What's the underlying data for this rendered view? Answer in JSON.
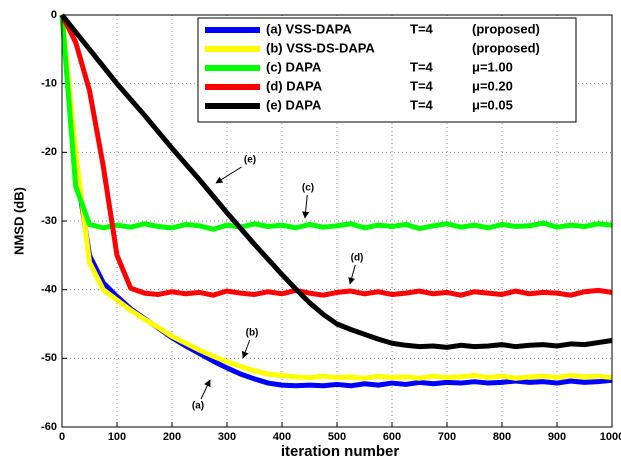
{
  "chart_data": {
    "type": "line",
    "xlabel": "iteration number",
    "ylabel": "NMSD (dB)",
    "xlim": [
      0,
      1000
    ],
    "ylim": [
      -60,
      0
    ],
    "xticks": [
      0,
      100,
      200,
      300,
      400,
      500,
      600,
      700,
      800,
      900,
      1000
    ],
    "yticks": [
      -60,
      -50,
      -40,
      -30,
      -20,
      -10,
      0
    ],
    "grid": true,
    "legend": "top-right",
    "x": [
      0,
      25,
      50,
      75,
      100,
      125,
      150,
      175,
      200,
      225,
      250,
      275,
      300,
      325,
      350,
      375,
      400,
      425,
      450,
      475,
      500,
      525,
      550,
      575,
      600,
      625,
      650,
      675,
      700,
      725,
      750,
      775,
      800,
      825,
      850,
      875,
      900,
      925,
      950,
      975,
      1000
    ],
    "series": [
      {
        "name": "(a) VSS-DAPA",
        "param": "T=4",
        "note": "(proposed)",
        "color": "#0000ff",
        "values": [
          0,
          -22,
          -35,
          -39,
          -41,
          -42.8,
          -44.2,
          -45.6,
          -47,
          -48.2,
          -49.3,
          -50.4,
          -51.4,
          -52.3,
          -53,
          -53.6,
          -53.9,
          -54,
          -53.9,
          -54,
          -53.8,
          -54,
          -53.7,
          -53.9,
          -53.6,
          -53.8,
          -53.5,
          -53.7,
          -53.5,
          -53.6,
          -53.4,
          -53.6,
          -53.5,
          -53.3,
          -53.5,
          -53.4,
          -53.6,
          -53.3,
          -53.5,
          -53.4,
          -53.2
        ]
      },
      {
        "name": "(b) VSS-DS-DAPA",
        "note": "(proposed)",
        "color": "#ffff00",
        "values": [
          0,
          -20,
          -36,
          -40,
          -41.5,
          -43,
          -44.3,
          -45.5,
          -46.8,
          -47.8,
          -48.8,
          -49.7,
          -50.5,
          -51.2,
          -51.8,
          -52.3,
          -52.5,
          -52.7,
          -52.8,
          -52.6,
          -52.8,
          -52.7,
          -52.9,
          -52.6,
          -52.8,
          -52.7,
          -52.9,
          -52.6,
          -52.8,
          -52.7,
          -52.5,
          -52.8,
          -52.6,
          -52.9,
          -52.7,
          -52.6,
          -52.8,
          -52.5,
          -52.7,
          -52.6,
          -52.8
        ]
      },
      {
        "name": "(c) DAPA",
        "param": "T=4",
        "note": "μ=1.00",
        "color": "#00ff00",
        "values": [
          0,
          -25,
          -30.5,
          -31,
          -30.6,
          -30.9,
          -30.4,
          -30.8,
          -31,
          -30.5,
          -30.7,
          -31.2,
          -30.6,
          -30.9,
          -30.4,
          -30.8,
          -30.6,
          -31,
          -30.5,
          -30.9,
          -30.7,
          -30.4,
          -31,
          -30.6,
          -30.8,
          -30.5,
          -31.1,
          -30.7,
          -30.4,
          -30.9,
          -30.6,
          -31,
          -30.5,
          -30.8,
          -30.7,
          -30.3,
          -30.9,
          -30.6,
          -30.8,
          -30.4,
          -30.6
        ]
      },
      {
        "name": "(d) DAPA",
        "param": "T=4",
        "note": "μ=0.20",
        "color": "#ff0000",
        "values": [
          0,
          -4,
          -11,
          -22,
          -35,
          -39.8,
          -40.5,
          -40.7,
          -40.3,
          -40.6,
          -40.4,
          -40.8,
          -40.2,
          -40.5,
          -40.7,
          -40.3,
          -40.6,
          -40.1,
          -40.5,
          -40.8,
          -40.4,
          -40.2,
          -40.6,
          -40.3,
          -40.7,
          -40.5,
          -40.2,
          -40.6,
          -40.4,
          -40.8,
          -40.3,
          -40.5,
          -40.7,
          -40.2,
          -40.6,
          -40.4,
          -40.5,
          -40.8,
          -40.3,
          -40.1,
          -40.4
        ]
      },
      {
        "name": "(e) DAPA",
        "param": "T=4",
        "note": "μ=0.05",
        "color": "#000000",
        "values": [
          0,
          -2.5,
          -5,
          -7.5,
          -10,
          -12.3,
          -14.6,
          -17,
          -19.4,
          -21.7,
          -24,
          -26.4,
          -28.8,
          -31.1,
          -33.4,
          -35.6,
          -37.8,
          -39.9,
          -41.9,
          -43.6,
          -45,
          -45.8,
          -46.5,
          -47.2,
          -47.8,
          -48.1,
          -48.3,
          -48.2,
          -48.4,
          -48.1,
          -48.3,
          -48.2,
          -48,
          -48.3,
          -48.1,
          -48,
          -48.2,
          -47.9,
          -48,
          -47.7,
          -47.4
        ]
      }
    ],
    "annotations": [
      {
        "text": "(a)"
      },
      {
        "text": "(b)"
      },
      {
        "text": "(c)"
      },
      {
        "text": "(d)"
      },
      {
        "text": "(e)"
      }
    ]
  }
}
